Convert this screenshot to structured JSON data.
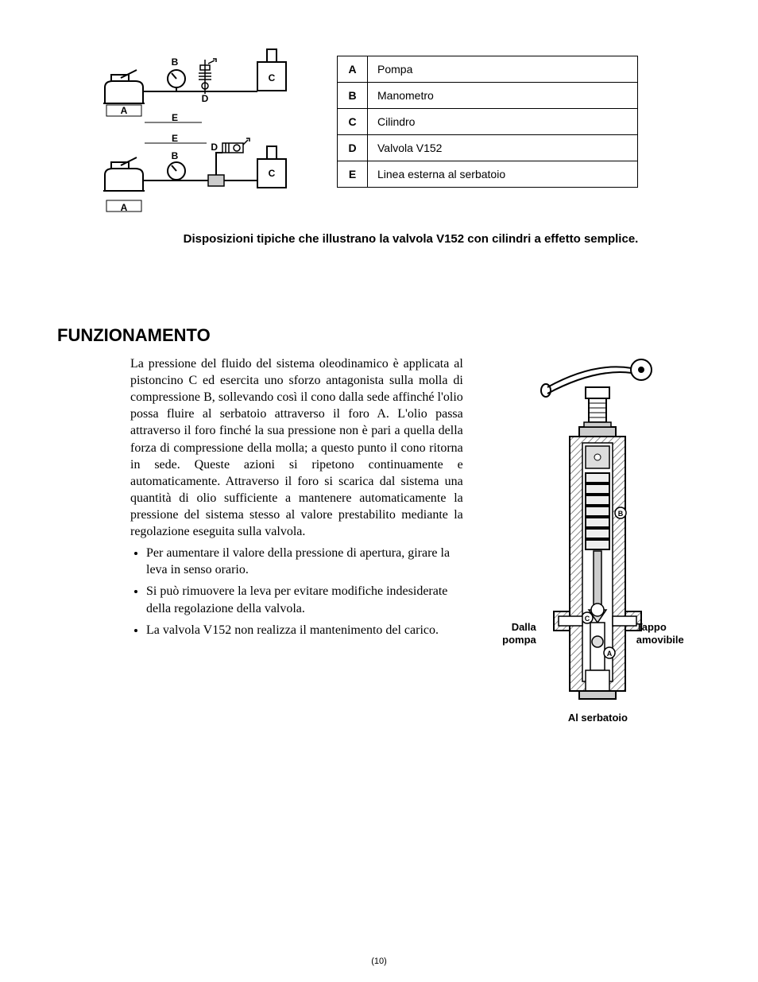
{
  "legend": {
    "rows": [
      {
        "key": "A",
        "val": "Pompa"
      },
      {
        "key": "B",
        "val": "Manometro"
      },
      {
        "key": "C",
        "val": "Cilindro"
      },
      {
        "key": "D",
        "val": "Valvola V152"
      },
      {
        "key": "E",
        "val": "Linea esterna al serbatoio"
      }
    ]
  },
  "schematic_labels": {
    "A": "A",
    "B": "B",
    "C": "C",
    "D": "D",
    "E": "E"
  },
  "caption": "Disposizioni tipiche che illustrano la valvola V152 con cilindri a effetto semplice.",
  "section_title": "FUNZIONAMENTO",
  "paragraph": "La pressione del fluido del sistema oleodinamico è applicata al pistoncino C ed esercita uno sforzo antagonista sulla molla di compressione B, sollevando così il cono dalla sede affinché l'olio possa fluire al serbatoio attraverso il foro A. L'olio passa attraverso il foro finché la sua pressione non è pari a quella della forza di compressione della molla; a questo punto il cono ritorna in sede. Queste azioni si ripetono continuamente e automaticamente. Attraverso il foro si scarica dal sistema una quantità di olio sufficiente a mantenere automaticamente la pressione del sistema stesso al valore prestabilito mediante la regolazione eseguita sulla valvola.",
  "bullets": [
    "Per aumentare il valore della pressione di apertura, girare la leva in senso orario.",
    "Si può rimuovere la leva per evitare modifiche indesiderate della regolazione della valvola.",
    "La valvola V152 non realizza il mantenimento del carico."
  ],
  "valve_labels": {
    "left1": "Dalla",
    "left2": "pompa",
    "right1": "Tappo",
    "right2": "amovibile",
    "bottom": "Al serbatoio",
    "marker_A": "A",
    "marker_B": "B",
    "marker_C": "C"
  },
  "page_number": "(10)",
  "colors": {
    "stroke": "#000000",
    "hatch": "#999999",
    "cutaway": "#bbbbbb",
    "background": "#ffffff"
  }
}
